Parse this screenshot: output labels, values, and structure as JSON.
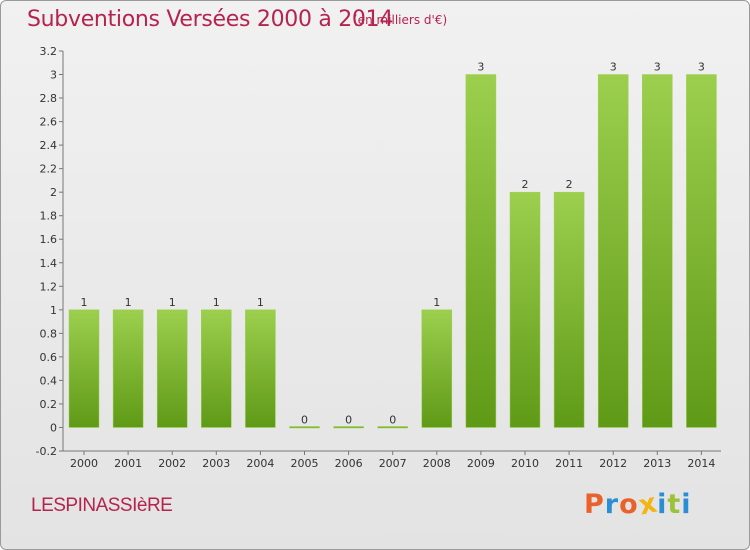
{
  "header": {
    "title": "Subventions Versées 2000 à 2014",
    "unit": "(en milliers d'€)"
  },
  "footer": {
    "commune": "LESPINASSIèRE",
    "logo_text": "Proxiti"
  },
  "colors": {
    "title": "#b5234f",
    "bar_light": "#9ccf4e",
    "bar_dark": "#5f9a17",
    "logo": [
      "#e8622a",
      "#2a8ed6",
      "#e8622a",
      "#f2b515",
      "#2a8ed6",
      "#9cc23a",
      "#2a8ed6"
    ]
  },
  "chart_data": {
    "type": "bar",
    "categories": [
      "2000",
      "2001",
      "2002",
      "2003",
      "2004",
      "2005",
      "2006",
      "2007",
      "2008",
      "2009",
      "2010",
      "2011",
      "2012",
      "2013",
      "2014"
    ],
    "values": [
      1,
      1,
      1,
      1,
      1,
      0,
      0,
      0,
      1,
      3,
      2,
      2,
      3,
      3,
      3
    ],
    "data_labels": [
      "1",
      "1",
      "1",
      "1",
      "1",
      "0",
      "0",
      "0",
      "1",
      "3",
      "2",
      "2",
      "3",
      "3",
      "3"
    ],
    "ylim": [
      -0.2,
      3.2
    ],
    "y_ticks": [
      -0.2,
      0,
      0.2,
      0.4,
      0.6,
      0.8,
      1,
      1.2,
      1.4,
      1.6,
      1.8,
      2,
      2.2,
      2.4,
      2.6,
      2.8,
      3,
      3.2
    ],
    "y_tick_labels": [
      "-0.2",
      "0",
      "0.2",
      "0.4",
      "0.6",
      "0.8",
      "1",
      "1.2",
      "1.4",
      "1.6",
      "1.8",
      "2",
      "2.2",
      "2.4",
      "2.6",
      "2.8",
      "3",
      "3.2"
    ],
    "title": "Subventions Versées 2000 à 2014",
    "xlabel": "",
    "ylabel": "",
    "grid": false
  }
}
